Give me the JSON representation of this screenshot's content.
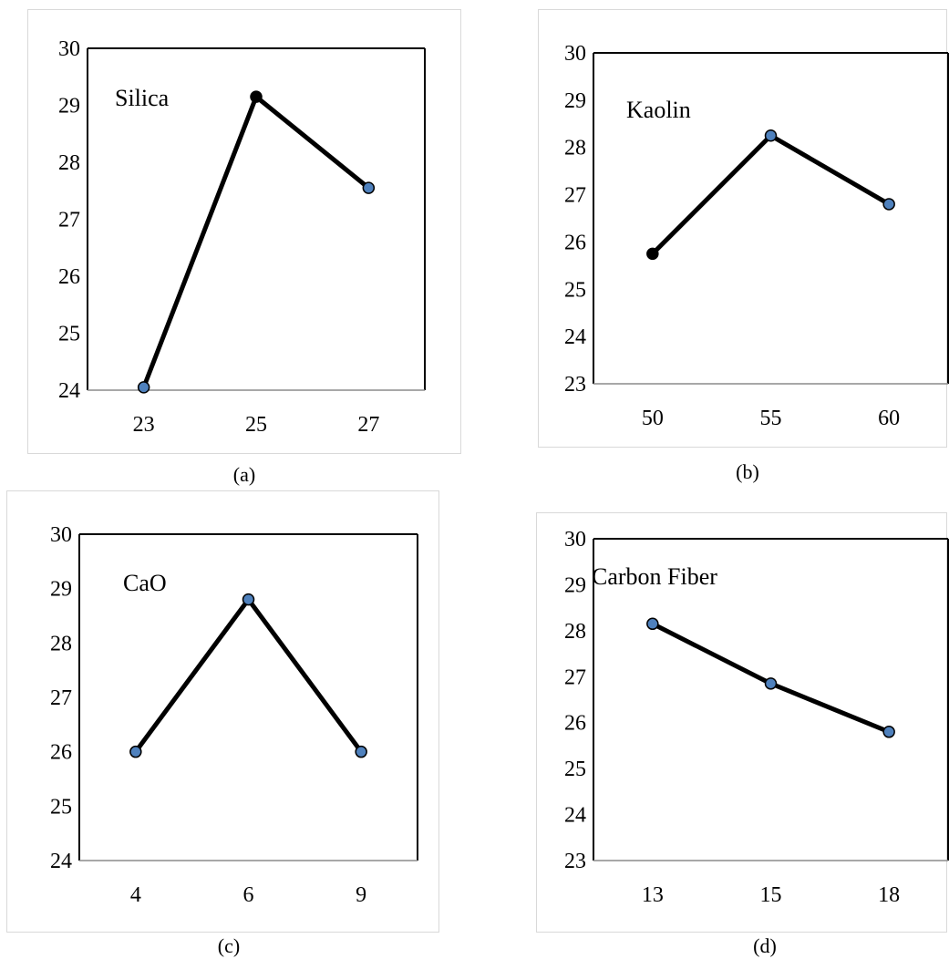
{
  "chart_data": [
    {
      "type": "line",
      "caption": "(a)",
      "annotation": "Silica",
      "categories": [
        "23",
        "25",
        "27"
      ],
      "values": [
        24.05,
        29.15,
        27.55
      ],
      "ylim": [
        24,
        30
      ],
      "yticks": [
        "24",
        "25",
        "26",
        "27",
        "28",
        "29",
        "30"
      ],
      "marker_colors": [
        "#4f81bd",
        "#000000",
        "#4f81bd"
      ]
    },
    {
      "type": "line",
      "caption": "(b)",
      "annotation": "Kaolin",
      "categories": [
        "50",
        "55",
        "60"
      ],
      "values": [
        25.75,
        28.25,
        26.8
      ],
      "ylim": [
        23,
        30
      ],
      "yticks": [
        "23",
        "24",
        "25",
        "26",
        "27",
        "28",
        "29",
        "30"
      ],
      "marker_colors": [
        "#000000",
        "#4f81bd",
        "#4f81bd"
      ]
    },
    {
      "type": "line",
      "caption": "(c)",
      "annotation": "CaO",
      "categories": [
        "4",
        "6",
        "9"
      ],
      "values": [
        26.0,
        28.8,
        26.0
      ],
      "ylim": [
        24,
        30
      ],
      "yticks": [
        "24",
        "25",
        "26",
        "27",
        "28",
        "29",
        "30"
      ],
      "marker_colors": [
        "#4f81bd",
        "#4f81bd",
        "#4f81bd"
      ]
    },
    {
      "type": "line",
      "caption": "(d)",
      "annotation": "Carbon Fiber",
      "categories": [
        "13",
        "15",
        "18"
      ],
      "values": [
        28.15,
        26.85,
        25.8
      ],
      "ylim": [
        23,
        30
      ],
      "yticks": [
        "23",
        "24",
        "25",
        "26",
        "27",
        "28",
        "29",
        "30"
      ],
      "marker_colors": [
        "#4f81bd",
        "#4f81bd",
        "#4f81bd"
      ]
    }
  ]
}
